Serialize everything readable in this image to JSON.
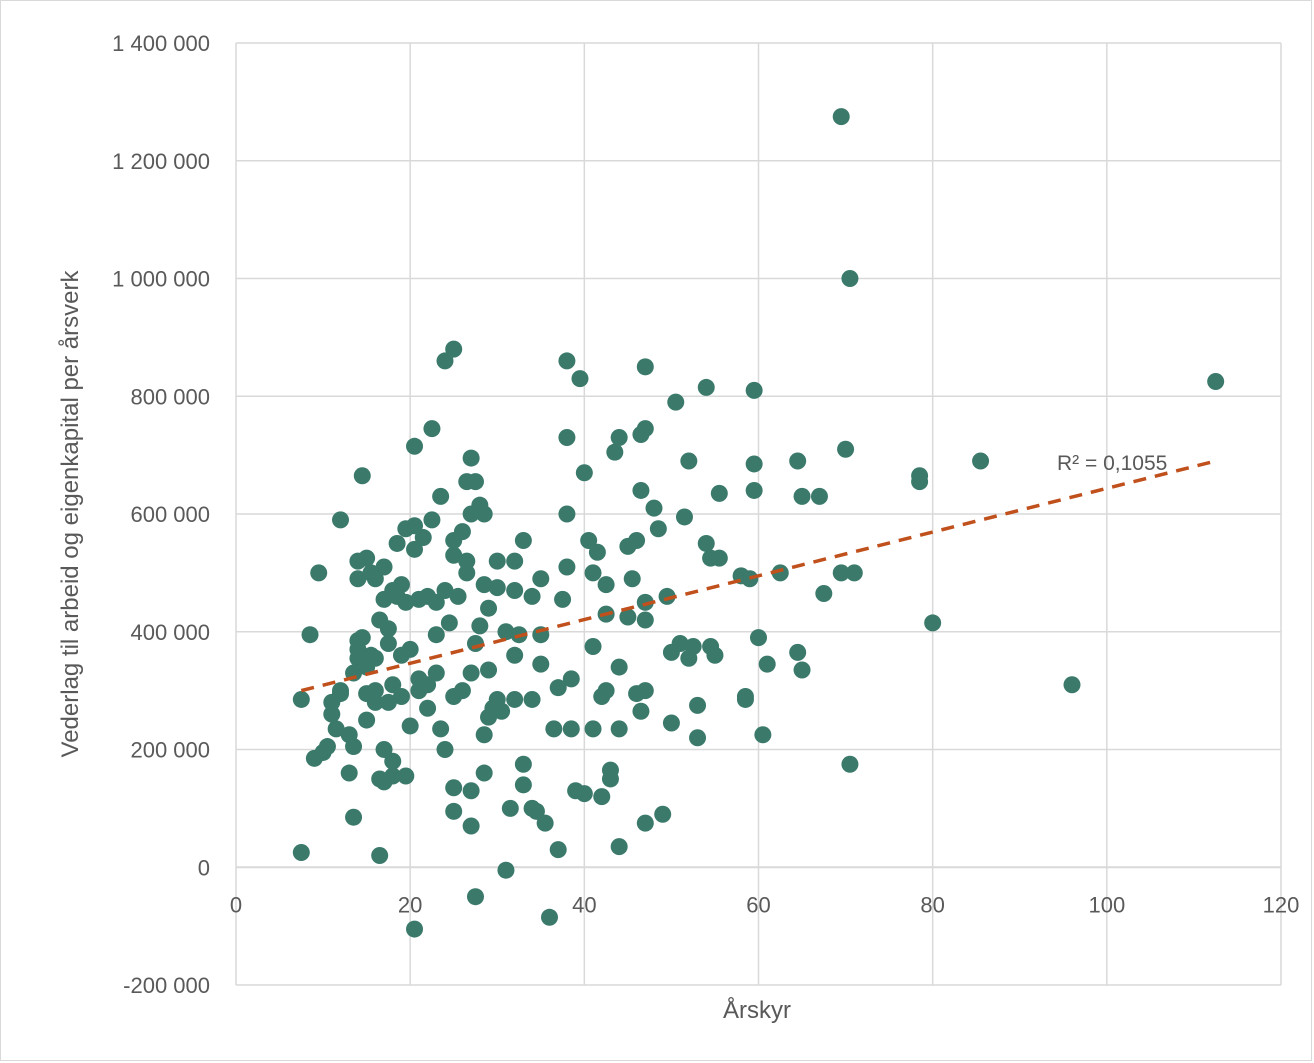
{
  "chart_data": {
    "type": "scatter",
    "xlabel": "Årskyr",
    "ylabel": "Vederlag til arbeid og eigenkapital per årsverk",
    "xlim": [
      0,
      120
    ],
    "ylim": [
      -200000,
      1400000
    ],
    "x_ticks": [
      "0",
      "20",
      "40",
      "60",
      "80",
      "100",
      "120"
    ],
    "y_ticks": [
      "-200 000",
      "0",
      "200 000",
      "400 000",
      "600 000",
      "800 000",
      "1 000 000",
      "1 200 000",
      "1 400 000"
    ],
    "grid": true,
    "colors": {
      "points": "#3b7a6b",
      "trendline": "#c0501c",
      "grid": "#d9d9d9",
      "text": "#595959"
    },
    "trendline": {
      "type": "linear",
      "dashed": true,
      "start": [
        7.5,
        300000
      ],
      "end": [
        112.5,
        690000
      ],
      "label": "R² = 0,1055"
    },
    "points": [
      [
        7.5,
        25000
      ],
      [
        7.5,
        285000
      ],
      [
        8.5,
        395000
      ],
      [
        9,
        185000
      ],
      [
        9.5,
        500000
      ],
      [
        10,
        195000
      ],
      [
        10.5,
        205000
      ],
      [
        11,
        260000
      ],
      [
        11,
        280000
      ],
      [
        11.5,
        235000
      ],
      [
        12,
        295000
      ],
      [
        12,
        300000
      ],
      [
        12,
        590000
      ],
      [
        13,
        160000
      ],
      [
        13,
        225000
      ],
      [
        13.5,
        205000
      ],
      [
        13.5,
        85000
      ],
      [
        13.5,
        330000
      ],
      [
        14,
        355000
      ],
      [
        14,
        370000
      ],
      [
        14,
        385000
      ],
      [
        14,
        520000
      ],
      [
        14,
        490000
      ],
      [
        14.5,
        665000
      ],
      [
        14.5,
        390000
      ],
      [
        15,
        295000
      ],
      [
        15,
        340000
      ],
      [
        15,
        250000
      ],
      [
        15,
        525000
      ],
      [
        15.5,
        360000
      ],
      [
        15.5,
        500000
      ],
      [
        16,
        355000
      ],
      [
        16,
        490000
      ],
      [
        16,
        300000
      ],
      [
        16,
        280000
      ],
      [
        16.5,
        420000
      ],
      [
        16.5,
        150000
      ],
      [
        16.5,
        20000
      ],
      [
        17,
        510000
      ],
      [
        17,
        455000
      ],
      [
        17,
        200000
      ],
      [
        17,
        145000
      ],
      [
        17.5,
        405000
      ],
      [
        17.5,
        380000
      ],
      [
        17.5,
        280000
      ],
      [
        18,
        470000
      ],
      [
        18,
        310000
      ],
      [
        18,
        180000
      ],
      [
        18,
        155000
      ],
      [
        18.5,
        460000
      ],
      [
        18.5,
        550000
      ],
      [
        19,
        480000
      ],
      [
        19,
        360000
      ],
      [
        19,
        290000
      ],
      [
        19.5,
        450000
      ],
      [
        19.5,
        575000
      ],
      [
        19.5,
        155000
      ],
      [
        20,
        370000
      ],
      [
        20,
        240000
      ],
      [
        20.5,
        715000
      ],
      [
        20.5,
        580000
      ],
      [
        20.5,
        540000
      ],
      [
        20.5,
        -105000
      ],
      [
        21,
        455000
      ],
      [
        21,
        320000
      ],
      [
        21,
        300000
      ],
      [
        21.5,
        560000
      ],
      [
        22,
        270000
      ],
      [
        22,
        310000
      ],
      [
        22,
        460000
      ],
      [
        22.5,
        745000
      ],
      [
        22.5,
        590000
      ],
      [
        23,
        395000
      ],
      [
        23,
        330000
      ],
      [
        23,
        450000
      ],
      [
        23.5,
        630000
      ],
      [
        23.5,
        235000
      ],
      [
        24,
        860000
      ],
      [
        24,
        200000
      ],
      [
        24,
        470000
      ],
      [
        24.5,
        415000
      ],
      [
        25,
        880000
      ],
      [
        25,
        555000
      ],
      [
        25,
        530000
      ],
      [
        25,
        290000
      ],
      [
        25,
        135000
      ],
      [
        25,
        95000
      ],
      [
        25.5,
        460000
      ],
      [
        26,
        570000
      ],
      [
        26,
        300000
      ],
      [
        26.5,
        520000
      ],
      [
        26.5,
        500000
      ],
      [
        26.5,
        655000
      ],
      [
        27,
        695000
      ],
      [
        27,
        600000
      ],
      [
        27,
        330000
      ],
      [
        27,
        130000
      ],
      [
        27,
        70000
      ],
      [
        27.5,
        655000
      ],
      [
        27.5,
        380000
      ],
      [
        27.5,
        -50000
      ],
      [
        28,
        410000
      ],
      [
        28,
        615000
      ],
      [
        28.5,
        600000
      ],
      [
        28.5,
        480000
      ],
      [
        28.5,
        160000
      ],
      [
        28.5,
        225000
      ],
      [
        29,
        440000
      ],
      [
        29,
        335000
      ],
      [
        29,
        255000
      ],
      [
        29.5,
        270000
      ],
      [
        30,
        520000
      ],
      [
        30,
        475000
      ],
      [
        30,
        285000
      ],
      [
        30.5,
        265000
      ],
      [
        31,
        400000
      ],
      [
        31,
        -5000
      ],
      [
        31.5,
        100000
      ],
      [
        32,
        520000
      ],
      [
        32,
        470000
      ],
      [
        32,
        285000
      ],
      [
        32,
        360000
      ],
      [
        32.5,
        395000
      ],
      [
        33,
        555000
      ],
      [
        33,
        175000
      ],
      [
        33,
        140000
      ],
      [
        34,
        460000
      ],
      [
        34,
        285000
      ],
      [
        34,
        100000
      ],
      [
        34.5,
        95000
      ],
      [
        35,
        490000
      ],
      [
        35,
        395000
      ],
      [
        35,
        345000
      ],
      [
        35.5,
        75000
      ],
      [
        36,
        -85000
      ],
      [
        36.5,
        235000
      ],
      [
        37,
        305000
      ],
      [
        37,
        30000
      ],
      [
        37.5,
        455000
      ],
      [
        38,
        860000
      ],
      [
        38,
        730000
      ],
      [
        38,
        600000
      ],
      [
        38,
        510000
      ],
      [
        38.5,
        320000
      ],
      [
        38.5,
        235000
      ],
      [
        39,
        130000
      ],
      [
        39.5,
        830000
      ],
      [
        40,
        670000
      ],
      [
        40,
        125000
      ],
      [
        40.5,
        555000
      ],
      [
        41,
        500000
      ],
      [
        41,
        375000
      ],
      [
        41,
        235000
      ],
      [
        41.5,
        535000
      ],
      [
        42,
        290000
      ],
      [
        42,
        120000
      ],
      [
        42.5,
        480000
      ],
      [
        42.5,
        430000
      ],
      [
        42.5,
        300000
      ],
      [
        43,
        150000
      ],
      [
        43,
        165000
      ],
      [
        43.5,
        705000
      ],
      [
        44,
        730000
      ],
      [
        44,
        340000
      ],
      [
        44,
        235000
      ],
      [
        44,
        35000
      ],
      [
        45,
        545000
      ],
      [
        45,
        425000
      ],
      [
        45.5,
        490000
      ],
      [
        46,
        555000
      ],
      [
        46,
        295000
      ],
      [
        46.5,
        640000
      ],
      [
        46.5,
        735000
      ],
      [
        46.5,
        265000
      ],
      [
        47,
        850000
      ],
      [
        47,
        745000
      ],
      [
        47,
        450000
      ],
      [
        47,
        420000
      ],
      [
        47,
        300000
      ],
      [
        47,
        75000
      ],
      [
        48,
        610000
      ],
      [
        48.5,
        575000
      ],
      [
        49,
        90000
      ],
      [
        49.5,
        460000
      ],
      [
        50,
        245000
      ],
      [
        50,
        365000
      ],
      [
        50.5,
        790000
      ],
      [
        51,
        380000
      ],
      [
        51.5,
        595000
      ],
      [
        52,
        690000
      ],
      [
        52,
        355000
      ],
      [
        52.5,
        375000
      ],
      [
        53,
        275000
      ],
      [
        53,
        220000
      ],
      [
        54,
        815000
      ],
      [
        54,
        550000
      ],
      [
        54.5,
        525000
      ],
      [
        54.5,
        375000
      ],
      [
        55,
        360000
      ],
      [
        55.5,
        635000
      ],
      [
        55.5,
        525000
      ],
      [
        58,
        495000
      ],
      [
        58.5,
        290000
      ],
      [
        58.5,
        285000
      ],
      [
        59,
        490000
      ],
      [
        59.5,
        810000
      ],
      [
        59.5,
        685000
      ],
      [
        59.5,
        640000
      ],
      [
        60,
        390000
      ],
      [
        60.5,
        225000
      ],
      [
        61,
        345000
      ],
      [
        62.5,
        500000
      ],
      [
        64.5,
        690000
      ],
      [
        64.5,
        365000
      ],
      [
        65,
        630000
      ],
      [
        65,
        335000
      ],
      [
        67,
        630000
      ],
      [
        67.5,
        465000
      ],
      [
        69.5,
        1275000
      ],
      [
        69.5,
        500000
      ],
      [
        70,
        710000
      ],
      [
        70.5,
        1000000
      ],
      [
        70.5,
        175000
      ],
      [
        71,
        500000
      ],
      [
        78.5,
        665000
      ],
      [
        78.5,
        655000
      ],
      [
        80,
        415000
      ],
      [
        85.5,
        690000
      ],
      [
        96,
        310000
      ],
      [
        112.5,
        825000
      ]
    ]
  }
}
